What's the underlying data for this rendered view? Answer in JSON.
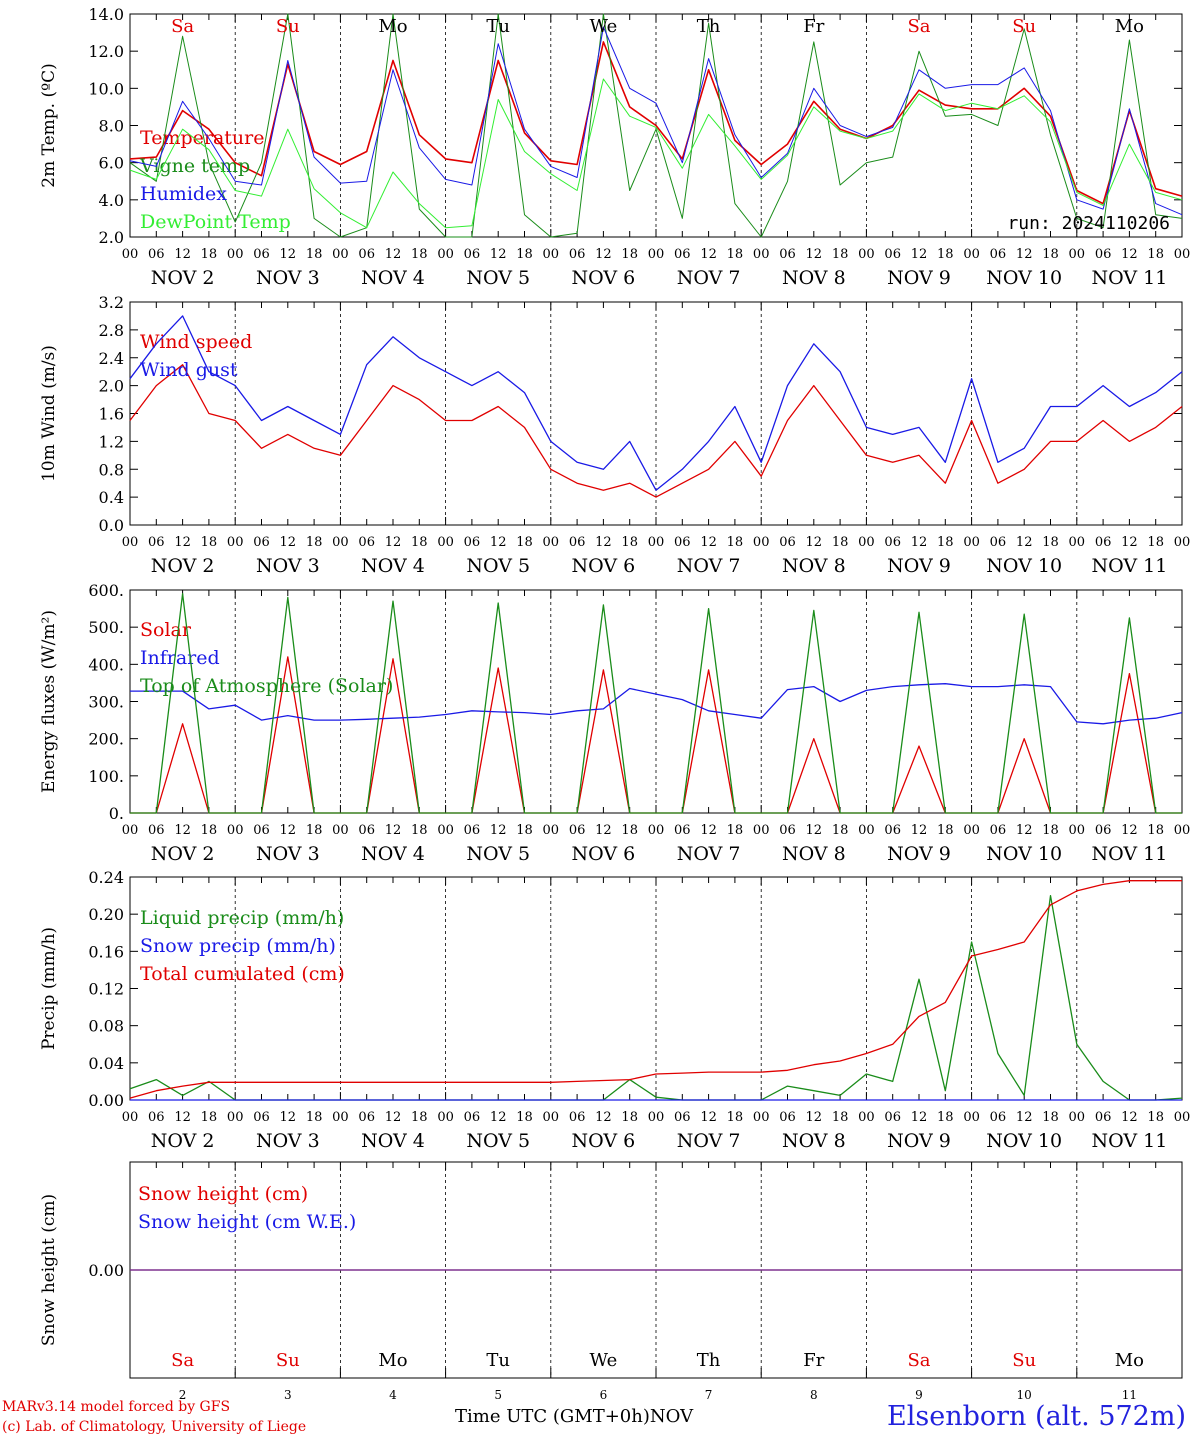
{
  "footer": {
    "model": "MARv3.14 model forced by GFS",
    "lab": "(c) Lab. of Climatology, University of Liege",
    "xtitle": "Time UTC (GMT+0h)",
    "station": "Elsenborn (alt. 572m)"
  },
  "colors": {
    "red": "#e00000",
    "green": "#1a8c1a",
    "blue": "#1a1ae6",
    "lightgreen": "#33ee33",
    "purple": "#7a2a8a"
  },
  "chart_data": [
    {
      "type": "line",
      "id": "temp",
      "ylabel": "2m Temp. (ºC)",
      "ylim": [
        2,
        14
      ],
      "yticks": [
        "2.0",
        "4.0",
        "6.0",
        "8.0",
        "10.0",
        "12.0",
        "14.0"
      ],
      "annotation": "run: 2024110206",
      "days_top": [
        {
          "label": "Sa",
          "color": "#e00000"
        },
        {
          "label": "Su",
          "color": "#e00000"
        },
        {
          "label": "Mo",
          "color": "#000000"
        },
        {
          "label": "Tu",
          "color": "#000000"
        },
        {
          "label": "We",
          "color": "#000000"
        },
        {
          "label": "Th",
          "color": "#000000"
        },
        {
          "label": "Fr",
          "color": "#000000"
        },
        {
          "label": "Sa",
          "color": "#e00000"
        },
        {
          "label": "Su",
          "color": "#e00000"
        },
        {
          "label": "Mo",
          "color": "#000000"
        }
      ],
      "x": [
        "Nov 2 00",
        "06",
        "12",
        "18",
        "Nov 3 00",
        "06",
        "12",
        "18",
        "Nov 4 00",
        "06",
        "12",
        "18",
        "Nov 5 00",
        "06",
        "12",
        "18",
        "Nov 6 00",
        "06",
        "12",
        "18",
        "Nov 7 00",
        "06",
        "12",
        "18",
        "Nov 8 00",
        "06",
        "12",
        "18",
        "Nov 9 00",
        "06",
        "12",
        "18",
        "Nov 10 00",
        "06",
        "12",
        "18",
        "Nov 11 00",
        "06",
        "12",
        "18",
        "Nov 12 00"
      ],
      "series": [
        {
          "name": "Temperature",
          "color": "#e00000",
          "width": 1.6,
          "values": [
            6.2,
            6.3,
            8.8,
            7.8,
            6.0,
            5.3,
            11.3,
            6.6,
            5.9,
            6.6,
            11.5,
            7.5,
            6.2,
            6.0,
            11.5,
            7.6,
            6.1,
            5.9,
            12.5,
            9.0,
            8.0,
            6.2,
            11.0,
            7.2,
            5.9,
            7.0,
            9.3,
            7.8,
            7.3,
            8.0,
            9.9,
            9.1,
            8.9,
            8.9,
            10.0,
            8.5,
            4.5,
            3.8,
            8.8,
            4.6,
            4.2
          ]
        },
        {
          "name": "Vigne temp",
          "color": "#1a8c1a",
          "width": 1.0,
          "values": [
            6.0,
            5.0,
            12.8,
            6.0,
            2.8,
            6.0,
            14.0,
            3.0,
            2.0,
            2.5,
            14.0,
            3.5,
            2.0,
            2.0,
            14.0,
            3.2,
            2.0,
            2.2,
            14.0,
            4.5,
            7.8,
            3.0,
            13.5,
            3.8,
            2.0,
            5.0,
            12.5,
            4.8,
            6.0,
            6.3,
            12.0,
            8.5,
            8.6,
            8.0,
            13.2,
            7.5,
            3.0,
            2.5,
            12.6,
            3.2,
            3.0
          ]
        },
        {
          "name": "Humidex",
          "color": "#1a1ae6",
          "width": 1.0,
          "values": [
            6.1,
            5.8,
            9.3,
            7.3,
            5.0,
            4.8,
            11.5,
            6.3,
            4.9,
            5.0,
            11.0,
            6.8,
            5.1,
            4.8,
            12.4,
            7.8,
            5.8,
            5.2,
            13.3,
            10.0,
            9.2,
            6.0,
            11.6,
            7.5,
            5.2,
            6.5,
            10.0,
            8.0,
            7.4,
            7.9,
            11.0,
            10.0,
            10.2,
            10.2,
            11.1,
            8.8,
            4.0,
            3.5,
            8.9,
            3.8,
            3.2
          ]
        },
        {
          "name": "DewPoint Temp",
          "color": "#33ee33",
          "width": 1.0,
          "values": [
            5.6,
            5.1,
            7.8,
            6.7,
            4.5,
            4.2,
            7.8,
            4.6,
            3.3,
            2.5,
            5.5,
            3.8,
            2.5,
            2.6,
            9.4,
            6.6,
            5.4,
            4.5,
            10.5,
            8.5,
            7.9,
            5.7,
            8.6,
            6.9,
            5.1,
            6.4,
            9.0,
            7.7,
            7.3,
            7.7,
            9.7,
            8.8,
            9.2,
            8.9,
            9.6,
            8.2,
            4.4,
            3.7,
            7.0,
            4.4,
            4.0
          ]
        }
      ]
    },
    {
      "type": "line",
      "id": "wind",
      "ylabel": "10m Wind (m/s)",
      "ylim": [
        0,
        3.2
      ],
      "yticks": [
        "0.0",
        "0.4",
        "0.8",
        "1.2",
        "1.6",
        "2.0",
        "2.4",
        "2.8",
        "3.2"
      ],
      "x": [
        "Nov 2 00",
        "06",
        "12",
        "18",
        "Nov 3 00",
        "06",
        "12",
        "18",
        "Nov 4 00",
        "06",
        "12",
        "18",
        "Nov 5 00",
        "06",
        "12",
        "18",
        "Nov 6 00",
        "06",
        "12",
        "18",
        "Nov 7 00",
        "06",
        "12",
        "18",
        "Nov 8 00",
        "06",
        "12",
        "18",
        "Nov 9 00",
        "06",
        "12",
        "18",
        "Nov 10 00",
        "06",
        "12",
        "18",
        "Nov 11 00",
        "06",
        "12",
        "18",
        "Nov 12 00"
      ],
      "series": [
        {
          "name": "Wind speed",
          "color": "#e00000",
          "values": [
            1.5,
            2.0,
            2.3,
            1.6,
            1.5,
            1.1,
            1.3,
            1.1,
            1.0,
            1.5,
            2.0,
            1.8,
            1.5,
            1.5,
            1.7,
            1.4,
            0.8,
            0.6,
            0.5,
            0.6,
            0.4,
            0.6,
            0.8,
            1.2,
            0.7,
            1.5,
            2.0,
            1.5,
            1.0,
            0.9,
            1.0,
            0.6,
            1.5,
            0.6,
            0.8,
            1.2,
            1.2,
            1.5,
            1.2,
            1.4,
            1.7
          ]
        },
        {
          "name": "Wind gust",
          "color": "#1a1ae6",
          "values": [
            2.1,
            2.6,
            3.0,
            2.2,
            2.0,
            1.5,
            1.7,
            1.5,
            1.3,
            2.3,
            2.7,
            2.4,
            2.2,
            2.0,
            2.2,
            1.9,
            1.2,
            0.9,
            0.8,
            1.2,
            0.5,
            0.8,
            1.2,
            1.7,
            0.9,
            2.0,
            2.6,
            2.2,
            1.4,
            1.3,
            1.4,
            0.9,
            2.1,
            0.9,
            1.1,
            1.7,
            1.7,
            2.0,
            1.7,
            1.9,
            2.2
          ]
        }
      ]
    },
    {
      "type": "line",
      "id": "energy",
      "ylabel": "Energy fluxes (W/m²)",
      "ylim": [
        0,
        600
      ],
      "yticks": [
        "0.",
        "100.",
        "200.",
        "300.",
        "400.",
        "500.",
        "600."
      ],
      "x": [
        "Nov 2 00",
        "06",
        "12",
        "18",
        "Nov 3 00",
        "06",
        "12",
        "18",
        "Nov 4 00",
        "06",
        "12",
        "18",
        "Nov 5 00",
        "06",
        "12",
        "18",
        "Nov 6 00",
        "06",
        "12",
        "18",
        "Nov 7 00",
        "06",
        "12",
        "18",
        "Nov 8 00",
        "06",
        "12",
        "18",
        "Nov 9 00",
        "06",
        "12",
        "18",
        "Nov 10 00",
        "06",
        "12",
        "18",
        "Nov 11 00",
        "06",
        "12",
        "18",
        "Nov 12 00"
      ],
      "series": [
        {
          "name": "Solar",
          "color": "#e00000",
          "values": [
            0,
            0,
            240,
            0,
            0,
            0,
            420,
            0,
            0,
            0,
            415,
            0,
            0,
            0,
            390,
            0,
            0,
            0,
            385,
            0,
            0,
            0,
            385,
            0,
            0,
            0,
            200,
            0,
            0,
            0,
            180,
            0,
            0,
            0,
            200,
            0,
            0,
            0,
            375,
            0,
            0
          ]
        },
        {
          "name": "Infrared",
          "color": "#1a1ae6",
          "values": [
            328,
            328,
            328,
            280,
            290,
            250,
            262,
            250,
            250,
            252,
            255,
            258,
            265,
            275,
            272,
            270,
            265,
            275,
            280,
            335,
            320,
            305,
            275,
            265,
            255,
            332,
            340,
            300,
            330,
            340,
            345,
            348,
            340,
            340,
            345,
            340,
            245,
            240,
            250,
            255,
            270
          ]
        },
        {
          "name": "Top of Atmosphere (Solar)",
          "color": "#1a8c1a",
          "values": [
            0,
            0,
            590,
            0,
            0,
            0,
            580,
            0,
            0,
            0,
            570,
            0,
            0,
            0,
            565,
            0,
            0,
            0,
            560,
            0,
            0,
            0,
            550,
            0,
            0,
            0,
            545,
            0,
            0,
            0,
            540,
            0,
            0,
            0,
            535,
            0,
            0,
            0,
            525,
            0,
            0
          ]
        }
      ]
    },
    {
      "type": "line",
      "id": "precip",
      "ylabel": "Precip (mm/h)",
      "ylim": [
        0,
        0.24
      ],
      "yticks": [
        "0.00",
        "0.04",
        "0.08",
        "0.12",
        "0.16",
        "0.20",
        "0.24"
      ],
      "x": [
        "Nov 2 00",
        "06",
        "12",
        "18",
        "Nov 3 00",
        "06",
        "12",
        "18",
        "Nov 4 00",
        "06",
        "12",
        "18",
        "Nov 5 00",
        "06",
        "12",
        "18",
        "Nov 6 00",
        "06",
        "12",
        "18",
        "Nov 7 00",
        "06",
        "12",
        "18",
        "Nov 8 00",
        "06",
        "12",
        "18",
        "Nov 9 00",
        "06",
        "12",
        "18",
        "Nov 10 00",
        "06",
        "12",
        "18",
        "Nov 11 00",
        "06",
        "12",
        "18",
        "Nov 12 00"
      ],
      "series": [
        {
          "name": "Liquid precip (mm/h)",
          "color": "#1a8c1a",
          "values": [
            0.012,
            0.022,
            0.005,
            0.02,
            0,
            0,
            0,
            0,
            0,
            0,
            0,
            0,
            0,
            0,
            0,
            0,
            0,
            0,
            0,
            0.022,
            0.003,
            0,
            0,
            0,
            0,
            0.015,
            0.01,
            0.005,
            0.028,
            0.02,
            0.13,
            0.01,
            0.17,
            0.05,
            0.005,
            0.22,
            0.06,
            0.02,
            0,
            0,
            0.002
          ]
        },
        {
          "name": "Snow precip (mm/h)",
          "color": "#1a1ae6",
          "values": [
            0,
            0,
            0,
            0,
            0,
            0,
            0,
            0,
            0,
            0,
            0,
            0,
            0,
            0,
            0,
            0,
            0,
            0,
            0,
            0,
            0,
            0,
            0,
            0,
            0,
            0,
            0,
            0,
            0,
            0,
            0,
            0,
            0,
            0,
            0,
            0,
            0,
            0,
            0,
            0,
            0
          ]
        },
        {
          "name": "Total cumulated (cm)",
          "color": "#e00000",
          "values": [
            0.002,
            0.01,
            0.015,
            0.019,
            0.019,
            0.019,
            0.019,
            0.019,
            0.019,
            0.019,
            0.019,
            0.019,
            0.019,
            0.019,
            0.019,
            0.019,
            0.019,
            0.02,
            0.021,
            0.022,
            0.028,
            0.029,
            0.03,
            0.03,
            0.03,
            0.032,
            0.038,
            0.042,
            0.05,
            0.06,
            0.09,
            0.105,
            0.155,
            0.162,
            0.17,
            0.21,
            0.225,
            0.232,
            0.236,
            0.236,
            0.236
          ]
        }
      ]
    },
    {
      "type": "line",
      "id": "snow",
      "ylabel": "Snow height (cm)",
      "ylim": [
        -1,
        1
      ],
      "yticks": [
        "0.00"
      ],
      "days_bottom": [
        {
          "label": "Sa",
          "color": "#e00000"
        },
        {
          "label": "Su",
          "color": "#e00000"
        },
        {
          "label": "Mo",
          "color": "#000000"
        },
        {
          "label": "Tu",
          "color": "#000000"
        },
        {
          "label": "We",
          "color": "#000000"
        },
        {
          "label": "Th",
          "color": "#000000"
        },
        {
          "label": "Fr",
          "color": "#000000"
        },
        {
          "label": "Sa",
          "color": "#e00000"
        },
        {
          "label": "Su",
          "color": "#e00000"
        },
        {
          "label": "Mo",
          "color": "#000000"
        }
      ],
      "day_numbers": [
        "2",
        "3",
        "4",
        "5",
        "6",
        "7",
        "8",
        "9",
        "10",
        "11"
      ],
      "month_label": "NOV",
      "x": [
        "Nov 2 00",
        "Nov 12 00"
      ],
      "series": [
        {
          "name": "Snow height (cm)",
          "color": "#e00000",
          "values": [
            0,
            0
          ]
        },
        {
          "name": "Snow height (cm W.E.)",
          "color": "#1a1ae6",
          "values": [
            0,
            0
          ]
        }
      ]
    }
  ],
  "day_axis": {
    "hour_ticks": [
      "00",
      "06",
      "12",
      "18"
    ],
    "end_tick": "00",
    "days": [
      "NOV  2",
      "NOV  3",
      "NOV  4",
      "NOV  5",
      "NOV  6",
      "NOV  7",
      "NOV  8",
      "NOV  9",
      "NOV 10",
      "NOV 11"
    ]
  }
}
